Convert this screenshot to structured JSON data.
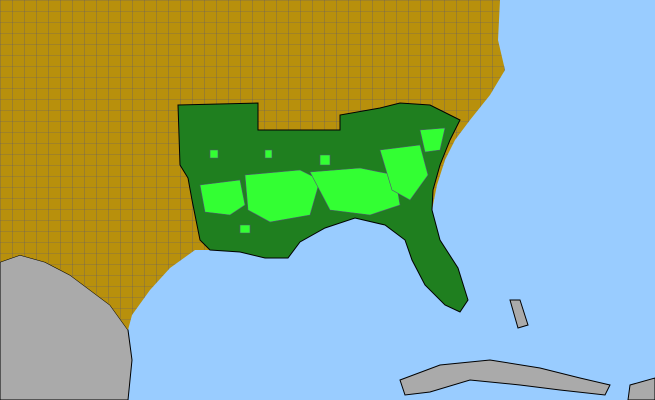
{
  "map": {
    "colors": {
      "water": "#99ccff",
      "land_other": "#b8900c",
      "county_lines": "#555577",
      "region_highlight": "#1f7f1f",
      "county_highlight": "#33ff33",
      "foreign_land": "#aaaaaa"
    }
  }
}
